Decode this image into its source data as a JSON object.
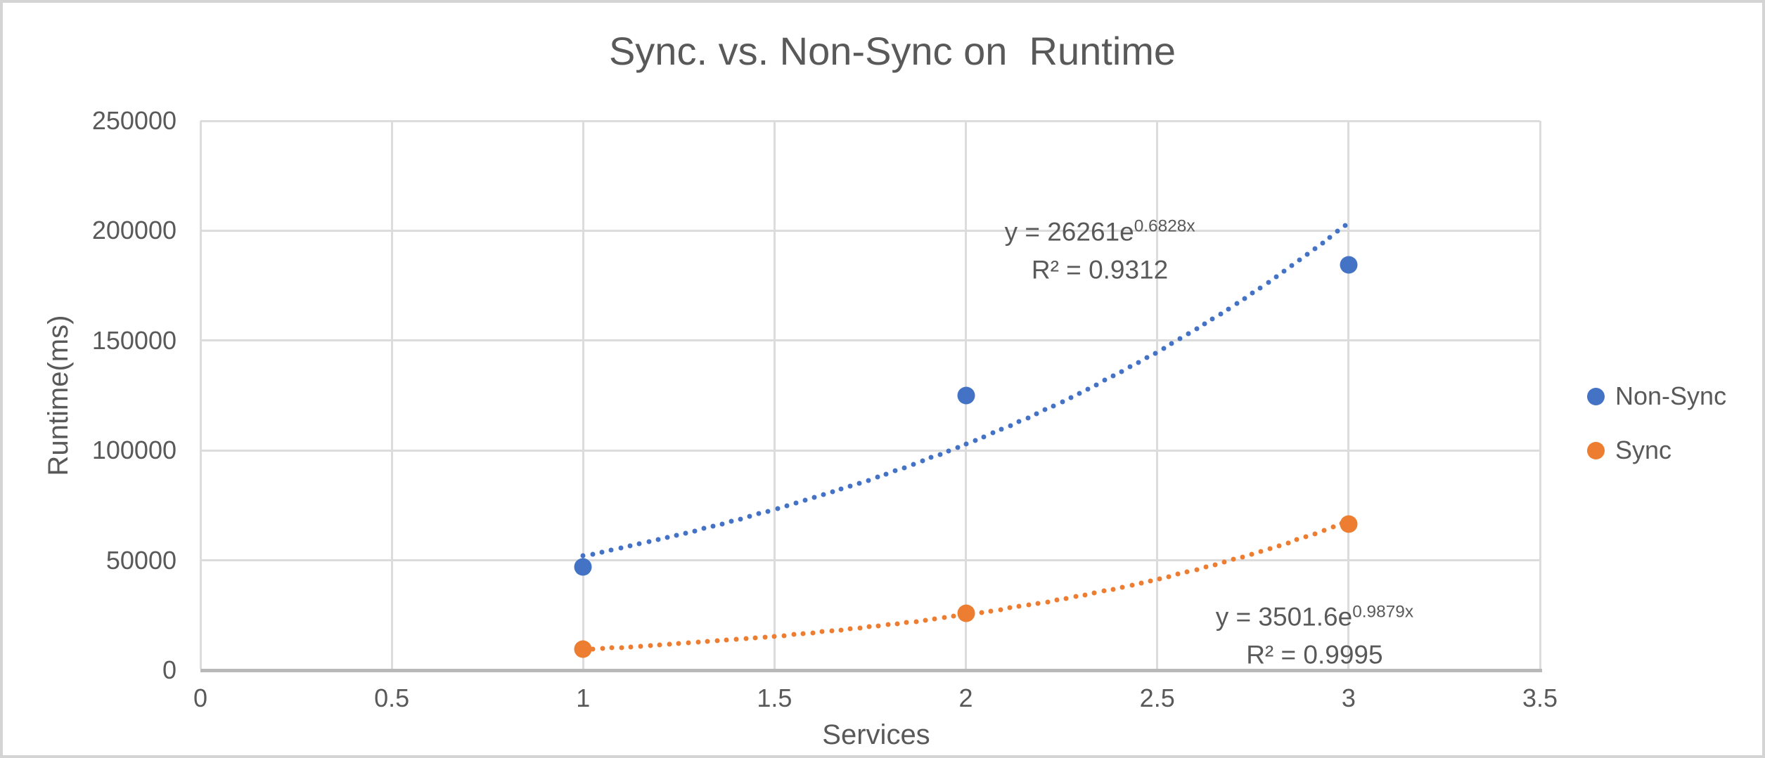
{
  "frame": {
    "background": "#FFFFFF",
    "border_color": "#D4D4D4"
  },
  "chart_data": {
    "type": "scatter",
    "title": "Sync. vs. Non-Sync on  Runtime",
    "xlabel": "Services",
    "ylabel": "Runtime(ms)",
    "xlim": [
      0,
      3.5
    ],
    "ylim": [
      0,
      250000
    ],
    "x_tick_values": [
      0,
      0.5,
      1,
      1.5,
      2,
      2.5,
      3,
      3.5
    ],
    "x_tick_labels": [
      "0",
      "0.5",
      "1",
      "1.5",
      "2",
      "2.5",
      "3",
      "3.5"
    ],
    "y_tick_values": [
      0,
      50000,
      100000,
      150000,
      200000,
      250000
    ],
    "y_tick_labels": [
      "0",
      "50000",
      "100000",
      "150000",
      "200000",
      "250000"
    ],
    "grid": true,
    "legend_position": "right",
    "colors": {
      "text": "#595959",
      "gridline": "#DCDCDC",
      "axis_line": "#B9B9B9"
    },
    "series": [
      {
        "name": "Non-Sync",
        "color": "#4472C4",
        "x": [
          1,
          2,
          3
        ],
        "y": [
          47000,
          125000,
          184500
        ],
        "trendline": {
          "type": "exponential",
          "a": 26261,
          "b": 0.6828,
          "x_range": [
            1,
            3.0
          ],
          "equation_base": "y = 26261e",
          "equation_exponent": "0.6828x",
          "r_squared": "R² = 0.9312",
          "label_anchor": {
            "x": 2.35,
            "y": 191000
          }
        }
      },
      {
        "name": "Sync",
        "color": "#ED7D31",
        "x": [
          1,
          2,
          3
        ],
        "y": [
          9500,
          26000,
          66500
        ],
        "trendline": {
          "type": "exponential",
          "a": 3501.6,
          "b": 0.9879,
          "x_range": [
            1,
            3.0
          ],
          "equation_base": "y = 3501.6e",
          "equation_exponent": "0.9879x",
          "r_squared": "R² = 0.9995",
          "label_anchor": {
            "x": 2.911,
            "y": 15700
          }
        }
      }
    ]
  }
}
